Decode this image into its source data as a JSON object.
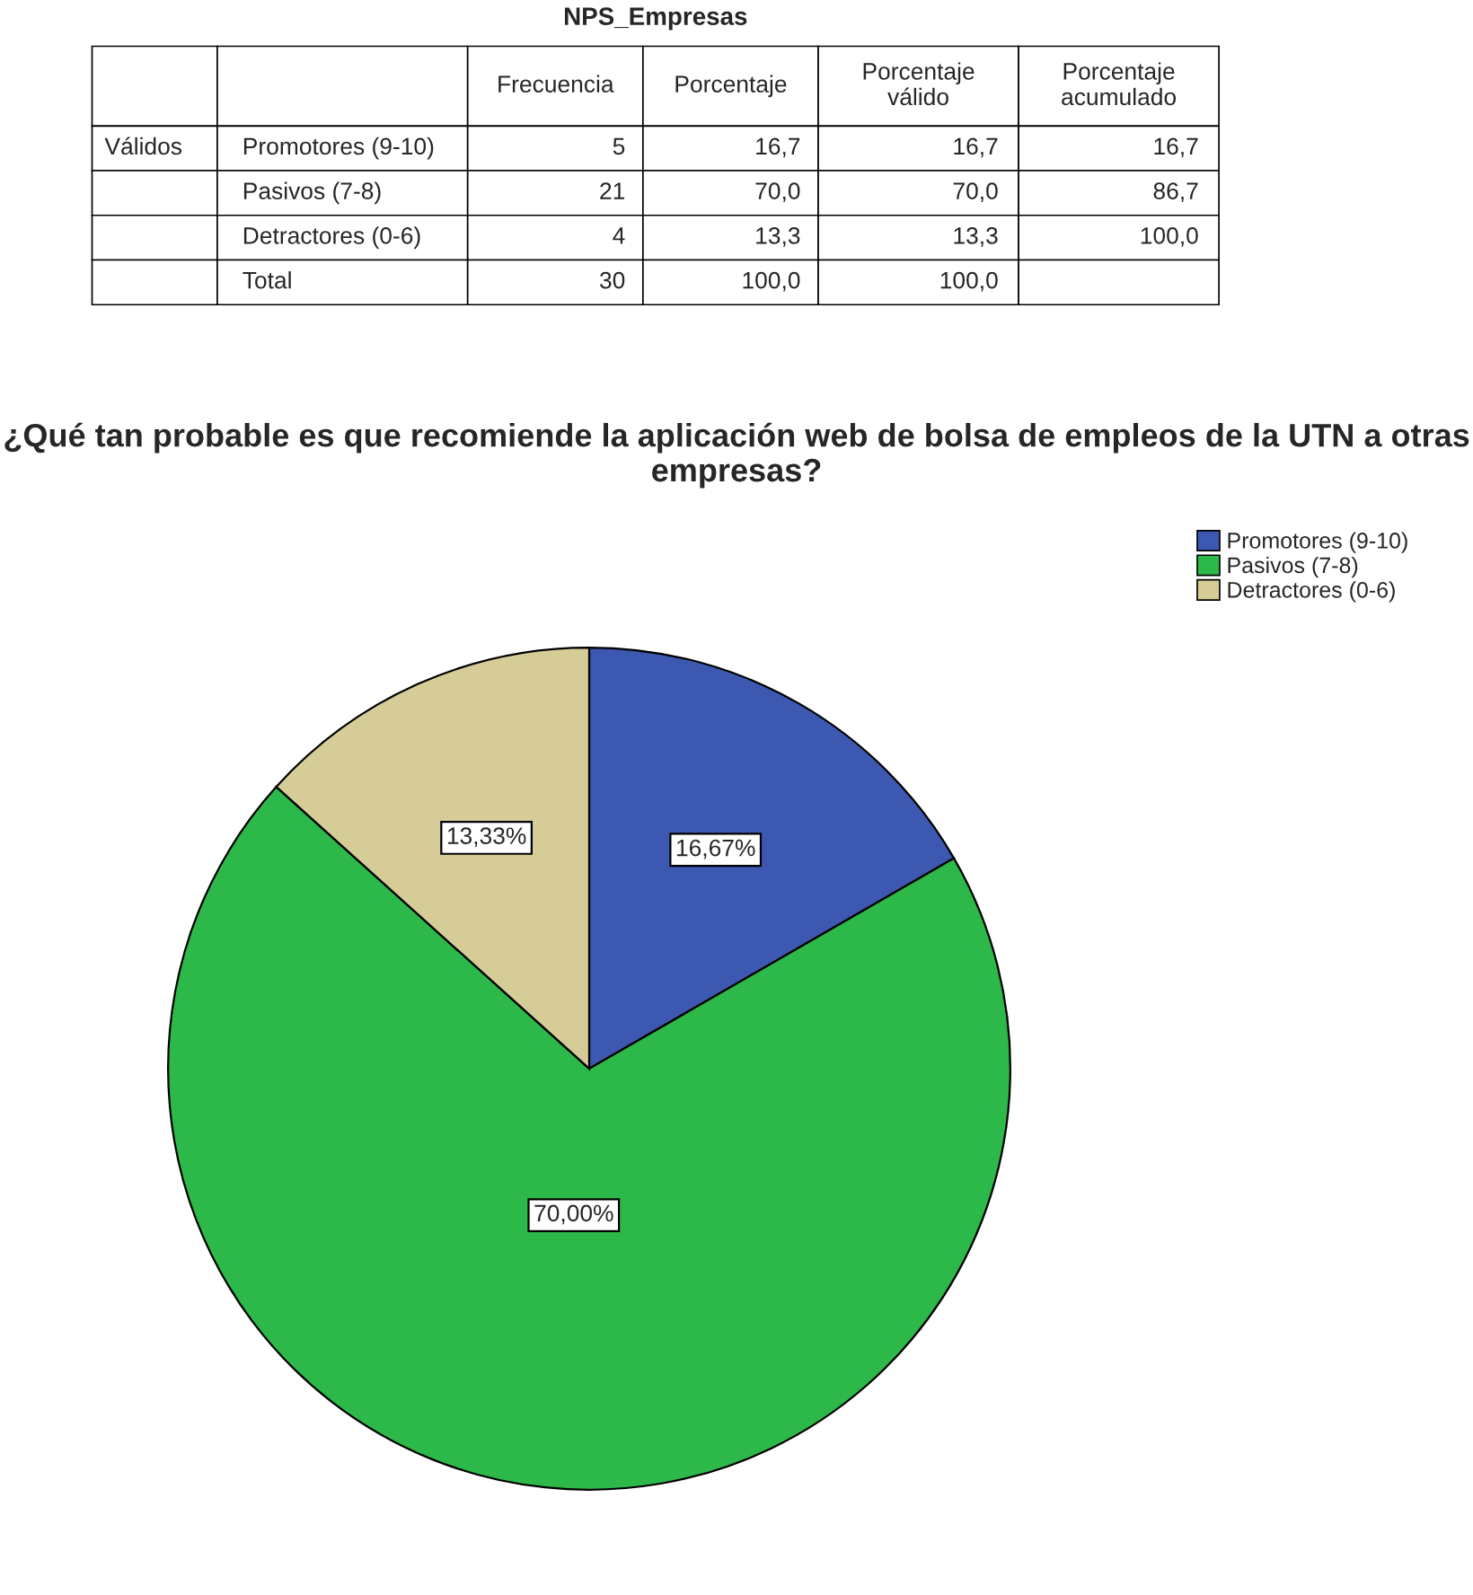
{
  "chart_data": [
    {
      "type": "other",
      "title": "NPS_Empresas",
      "categories": [
        "Frecuencia",
        "Porcentaje",
        "Porcentaje válido",
        "Porcentaje acumulado"
      ],
      "y_categories": [
        "Promotores (9-10)",
        "Pasivos (7-8)",
        "Detractores (0-6)",
        "Total"
      ],
      "annotations": [
        "Válidos"
      ],
      "cell_labels": [
        [
          "5",
          "16,7",
          "16,7",
          "16,7"
        ],
        [
          "21",
          "70,0",
          "70,0",
          "86,7"
        ],
        [
          "4",
          "13,3",
          "13,3",
          "100,0"
        ],
        [
          "30",
          "100,0",
          "100,0",
          null
        ]
      ]
    },
    {
      "type": "pie",
      "title": "¿Qué tan probable es que recomiende la aplicación web de bolsa de empleos de la UTN a otras empresas?",
      "categories": [
        "Promotores (9-10)",
        "Pasivos (7-8)",
        "Detractores (0-6)"
      ],
      "values": [
        16.67,
        70.0,
        13.33
      ],
      "colors": [
        "#3c58b0",
        "#2db84a",
        "#d5cc98"
      ],
      "value_labels": [
        "16,67%",
        "70,00%",
        "13,33%"
      ],
      "legend": "top right"
    }
  ]
}
